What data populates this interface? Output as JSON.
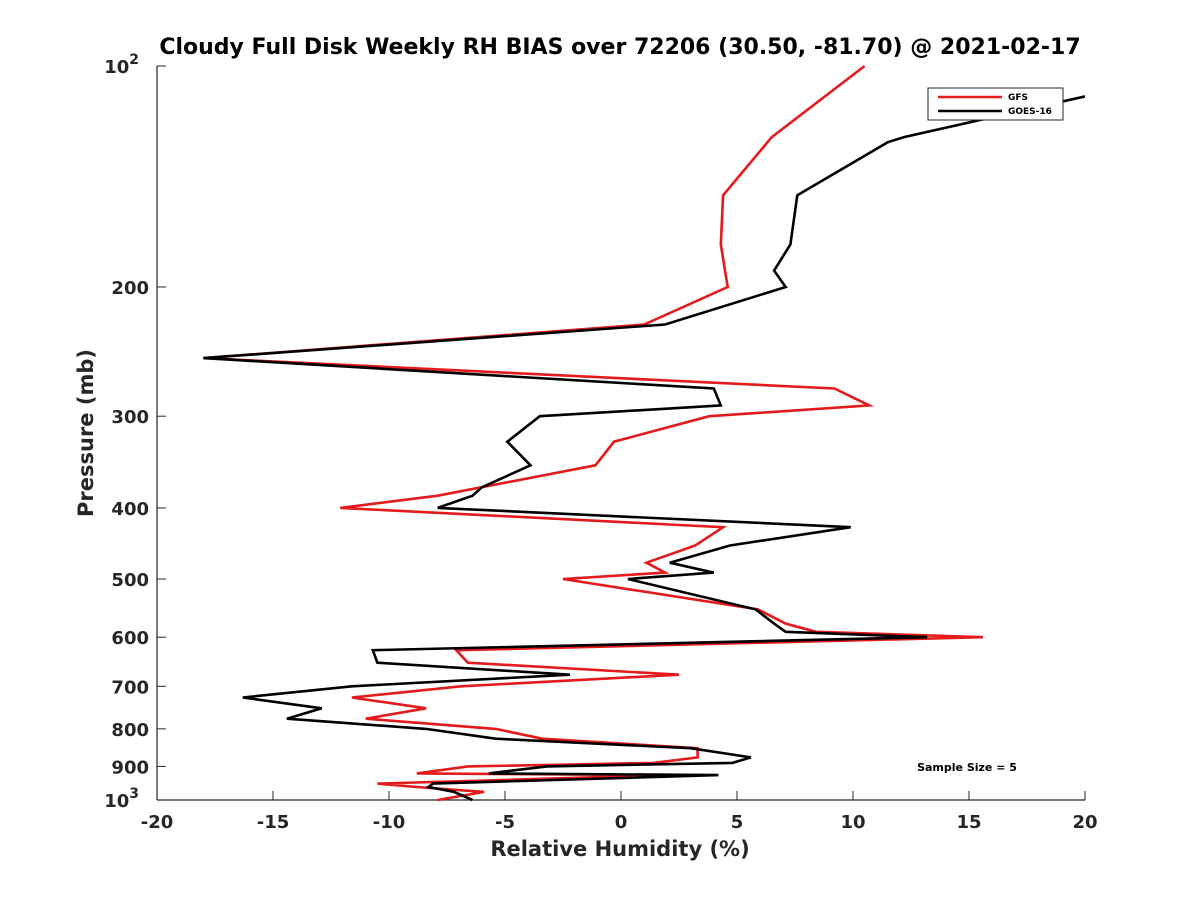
{
  "chart_data": {
    "type": "line",
    "title": "Cloudy Full Disk Weekly RH BIAS over 72206 (30.50, -81.70) @ 2021-02-17",
    "xlabel": "Relative Humidity (%)",
    "ylabel": "Pressure (mb)",
    "xlim": [
      -20,
      20
    ],
    "ylim": [
      100,
      1000
    ],
    "yscale": "log",
    "y_reversed": true,
    "xticks": [
      -20,
      -15,
      -10,
      -5,
      0,
      5,
      10,
      15,
      20
    ],
    "yticks": [
      {
        "value": 100,
        "base": "10",
        "exp": "2"
      },
      {
        "value": 200,
        "label": "200"
      },
      {
        "value": 300,
        "label": "300"
      },
      {
        "value": 400,
        "label": "400"
      },
      {
        "value": 500,
        "label": "500"
      },
      {
        "value": 600,
        "label": "600"
      },
      {
        "value": 700,
        "label": "700"
      },
      {
        "value": 800,
        "label": "800"
      },
      {
        "value": 900,
        "label": "900"
      },
      {
        "value": 1000,
        "base": "10",
        "exp": "3"
      }
    ],
    "legend_position": "top-right",
    "annotation": "Sample Size = 5",
    "series": [
      {
        "name": "GFS",
        "color": "#e41a1c",
        "points": [
          [
            10.5,
            100
          ],
          [
            6.5,
            125
          ],
          [
            4.4,
            150
          ],
          [
            4.3,
            175
          ],
          [
            4.6,
            200
          ],
          [
            1.0,
            225
          ],
          [
            -18.0,
            250
          ],
          [
            9.2,
            275
          ],
          [
            10.7,
            290
          ],
          [
            3.8,
            300
          ],
          [
            -0.3,
            325
          ],
          [
            -1.1,
            350
          ],
          [
            -7.9,
            385
          ],
          [
            -12.1,
            400
          ],
          [
            4.4,
            425
          ],
          [
            3.2,
            450
          ],
          [
            1.1,
            475
          ],
          [
            1.9,
            490
          ],
          [
            -2.5,
            500
          ],
          [
            5.9,
            550
          ],
          [
            7.1,
            575
          ],
          [
            8.4,
            590
          ],
          [
            15.6,
            600
          ],
          [
            -7.1,
            625
          ],
          [
            -6.6,
            650
          ],
          [
            2.5,
            675
          ],
          [
            -6.9,
            700
          ],
          [
            -11.6,
            725
          ],
          [
            -8.4,
            750
          ],
          [
            -11.0,
            775
          ],
          [
            -5.4,
            800
          ],
          [
            -3.4,
            825
          ],
          [
            3.3,
            850
          ],
          [
            3.3,
            875
          ],
          [
            1.4,
            890
          ],
          [
            -6.6,
            900
          ],
          [
            -8.8,
            920
          ],
          [
            2.1,
            925
          ],
          [
            -10.5,
            950
          ],
          [
            -8.8,
            960
          ],
          [
            -5.9,
            975
          ],
          [
            -7.9,
            1000
          ]
        ]
      },
      {
        "name": "GOES-16",
        "color": "#000000",
        "points": [
          [
            20.0,
            110
          ],
          [
            12.2,
            125
          ],
          [
            11.5,
            127
          ],
          [
            7.6,
            150
          ],
          [
            7.3,
            175
          ],
          [
            6.6,
            190
          ],
          [
            7.1,
            200
          ],
          [
            1.9,
            225
          ],
          [
            -18.0,
            250
          ],
          [
            4.0,
            275
          ],
          [
            4.3,
            290
          ],
          [
            -3.5,
            300
          ],
          [
            -4.9,
            325
          ],
          [
            -3.9,
            350
          ],
          [
            -6.0,
            375
          ],
          [
            -6.4,
            385
          ],
          [
            -7.9,
            400
          ],
          [
            9.9,
            425
          ],
          [
            4.7,
            450
          ],
          [
            2.1,
            475
          ],
          [
            4.0,
            490
          ],
          [
            0.3,
            500
          ],
          [
            5.8,
            550
          ],
          [
            6.6,
            575
          ],
          [
            7.1,
            590
          ],
          [
            13.2,
            600
          ],
          [
            -10.7,
            625
          ],
          [
            -10.5,
            650
          ],
          [
            -2.2,
            675
          ],
          [
            -11.6,
            700
          ],
          [
            -16.3,
            725
          ],
          [
            -12.9,
            750
          ],
          [
            -14.4,
            775
          ],
          [
            -8.4,
            800
          ],
          [
            -5.4,
            825
          ],
          [
            3.0,
            850
          ],
          [
            5.6,
            875
          ],
          [
            4.8,
            890
          ],
          [
            -3.2,
            900
          ],
          [
            -5.7,
            920
          ],
          [
            4.2,
            925
          ],
          [
            -8.1,
            950
          ],
          [
            -8.3,
            960
          ],
          [
            -7.2,
            975
          ],
          [
            -6.4,
            1000
          ]
        ]
      }
    ]
  }
}
